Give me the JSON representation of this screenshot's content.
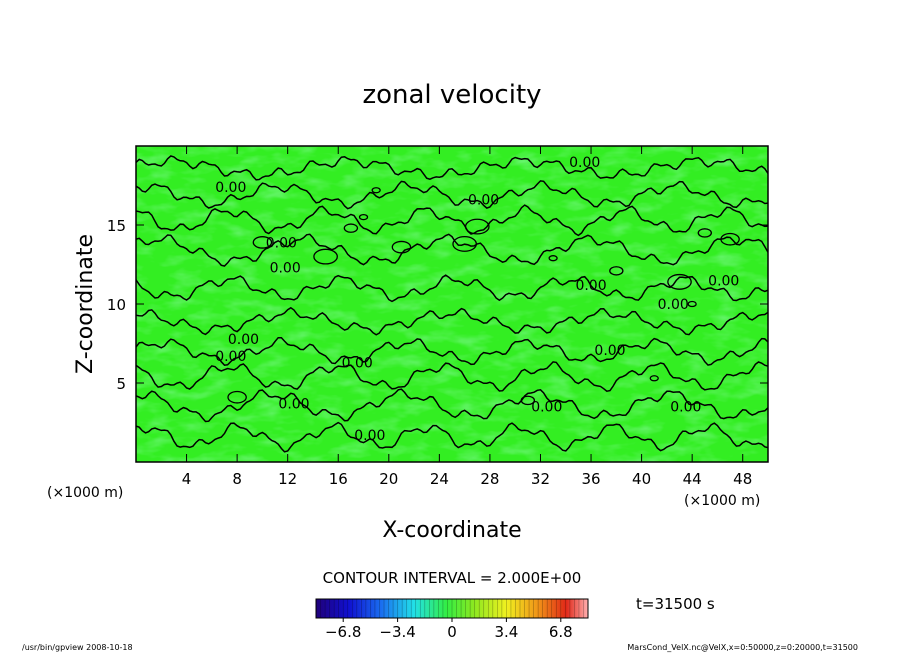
{
  "chart_data": {
    "type": "heatmap",
    "title": "zonal velocity",
    "xlabel": "X-coordinate",
    "ylabel": "Z-coordinate",
    "x_unit": "(×1000 m)",
    "y_unit": "(×1000 m)",
    "xlim": [
      0,
      50
    ],
    "ylim": [
      0,
      20
    ],
    "x_ticks": [
      4,
      8,
      12,
      16,
      20,
      24,
      28,
      32,
      36,
      40,
      44,
      48
    ],
    "y_ticks": [
      5,
      10,
      15
    ],
    "contour_interval_text": "CONTOUR INTERVAL = 2.000E+00",
    "time_text": "t=31500 s",
    "contour_labels": [
      "0.00",
      "0.00",
      "0.00",
      "0.00",
      "0.00",
      "0.00",
      "0.00",
      "0.00",
      "0.00",
      "0.00",
      "0.00",
      "0.00",
      "0.00",
      "0.00",
      "0.00",
      "0.00"
    ],
    "colorbar": {
      "range": [
        -8.5,
        8.5
      ],
      "tick_values": [
        -6.8,
        -3.4,
        0,
        3.4,
        6.8
      ],
      "tick_labels": [
        "−6.8",
        "−3.4",
        "0",
        "3.4",
        "6.8"
      ]
    },
    "field_description": "zonal velocity near 0 over the whole domain, with alternating horizontal bands of slightly positive and slightly negative values"
  },
  "footer": {
    "left": "/usr/bin/gpview   2008-10-18",
    "right": "MarsCond_VelX.nc@VelX,x=0:50000,z=0:20000,t=31500"
  },
  "colors": {
    "field_base": "#33ee22",
    "contour": "#000000"
  }
}
